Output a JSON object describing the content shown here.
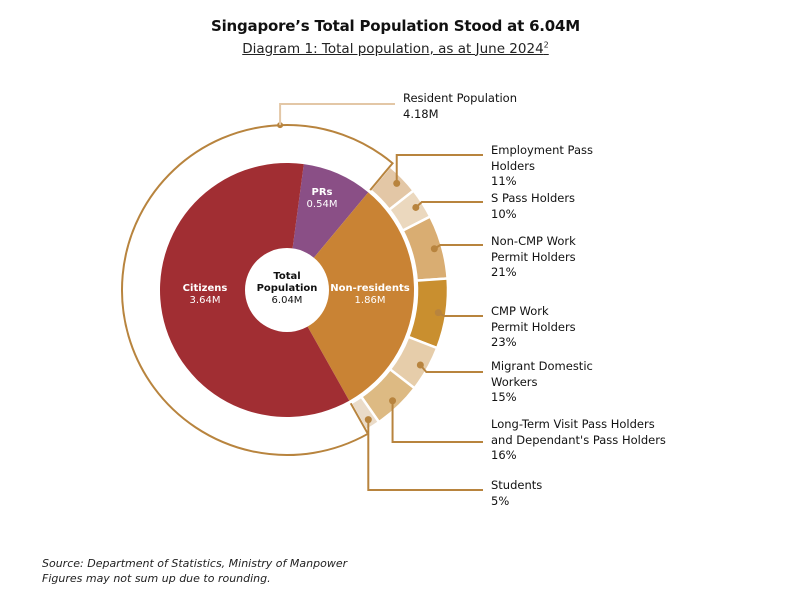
{
  "title": "Singapore’s Total Population Stood at 6.04M",
  "subtitle": "Diagram 1: Total population, as at June 2024",
  "subtitle_sup": "2",
  "chart_data": {
    "type": "pie",
    "center": {
      "label": "Total Population",
      "value": "6.04M",
      "total": 6.04
    },
    "inner": [
      {
        "name": "Citizens",
        "value": 3.64,
        "value_label": "3.64M",
        "color": "#A12E33"
      },
      {
        "name": "PRs",
        "value": 0.54,
        "value_label": "0.54M",
        "color": "#8A4F86"
      },
      {
        "name": "Non-residents",
        "value": 1.86,
        "value_label": "1.86M",
        "color": "#C98334"
      }
    ],
    "resident_group": {
      "name": "Resident Population",
      "value_label": "4.18M"
    },
    "non_resident_breakdown": [
      {
        "name": "Employment Pass Holders",
        "percent": 11,
        "label": "11%",
        "color": "#E3C7A6"
      },
      {
        "name": "S Pass Holders",
        "percent": 10,
        "label": "10%",
        "color": "#EBD8BE"
      },
      {
        "name": "Non-CMP Work Permit Holders",
        "percent": 21,
        "label": "21%",
        "color": "#D9AD72"
      },
      {
        "name": "CMP Work Permit Holders",
        "percent": 23,
        "label": "23%",
        "color": "#C98F2F"
      },
      {
        "name": "Migrant Domestic Workers",
        "percent": 15,
        "label": "15%",
        "color": "#E6CDAA"
      },
      {
        "name": "Long-Term Visit Pass Holders and Dependant's Pass Holders",
        "percent": 16,
        "label": "16%",
        "color": "#DDBA83"
      },
      {
        "name": "Students",
        "percent": 5,
        "label": "5%",
        "color": "#EADBC8"
      }
    ],
    "line_color": "#B8843E"
  },
  "footer": {
    "source": "Source: Department of Statistics, Ministry of Manpower",
    "note": "Figures may not sum up due to rounding."
  }
}
